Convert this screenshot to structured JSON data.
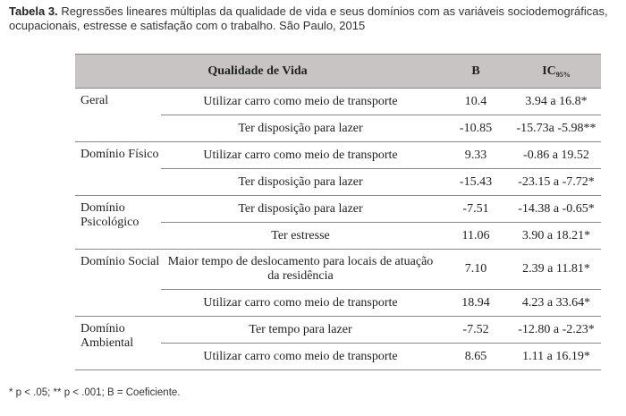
{
  "caption": {
    "label": "Tabela 3.",
    "text": "Regressões lineares múltiplas da qualidade de vida e seus domínios com as variáveis sociodemográficas, ocupacionais, estresse e satisfação com o trabalho. São Paulo, 2015"
  },
  "header": {
    "qualidade": "Qualidade de Vida",
    "b": "B",
    "ic": "IC",
    "ic_sub": "95%"
  },
  "groups": [
    {
      "domain": "Geral",
      "rows": [
        {
          "var": "Utilizar carro como meio de transporte",
          "b": "10.4",
          "ic": "3.94 a 16.8*"
        },
        {
          "var": "Ter disposição para lazer",
          "b": "-10.85",
          "ic": "-15.73a -5.98**"
        }
      ]
    },
    {
      "domain": "Domínio Físico",
      "rows": [
        {
          "var": "Utilizar carro como meio de transporte",
          "b": "9.33",
          "ic": "-0.86 a 19.52"
        },
        {
          "var": "Ter disposição para lazer",
          "b": "-15.43",
          "ic": "-23.15 a -7.72*"
        }
      ]
    },
    {
      "domain": "Domínio Psicológico",
      "rows": [
        {
          "var": "Ter disposição para lazer",
          "b": "-7.51",
          "ic": "-14.38 a -0.65*"
        },
        {
          "var": "Ter estresse",
          "b": "11.06",
          "ic": "3.90 a 18.21*"
        }
      ]
    },
    {
      "domain": "Domínio Social",
      "rows": [
        {
          "var": "Maior tempo de deslocamento para locais de atuação da residência",
          "b": "7.10",
          "ic": "2.39 a 11.81*"
        },
        {
          "var": "Utilizar carro como meio de transporte",
          "b": "18.94",
          "ic": "4.23 a 33.64*"
        }
      ]
    },
    {
      "domain": "Domínio Ambiental",
      "rows": [
        {
          "var": "Ter tempo para lazer",
          "b": "-7.52",
          "ic": "-12.80 a -2.23*"
        },
        {
          "var": "Utilizar carro como meio de transporte",
          "b": "8.65",
          "ic": "1.11 a 16.19*"
        }
      ]
    }
  ],
  "footnote": "* p < .05; ** p < .001; B = Coeficiente."
}
